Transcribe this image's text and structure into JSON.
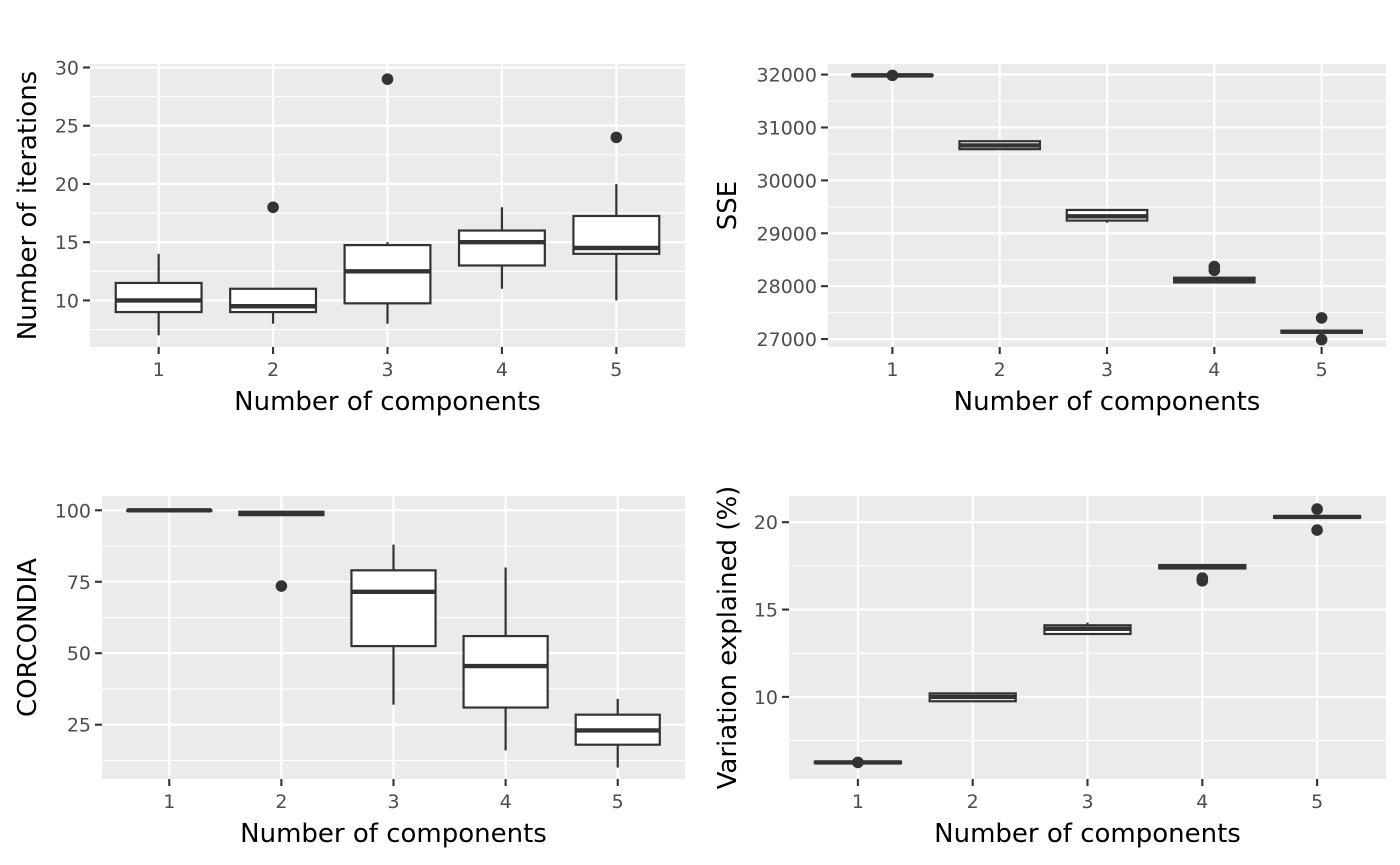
{
  "chart_data": [
    {
      "type": "boxplot",
      "xlabel": "Number of components",
      "ylabel": "Number of iterations",
      "categories": [
        "1",
        "2",
        "3",
        "4",
        "5"
      ],
      "ylim": [
        6,
        30.3
      ],
      "yticks": [
        10,
        15,
        20,
        25,
        30
      ],
      "ytick_labels": [
        "10",
        "15",
        "20",
        "25",
        "30"
      ],
      "yminor": [
        7.5,
        12.5,
        17.5,
        22.5,
        27.5
      ],
      "boxes": [
        {
          "category": "1",
          "whisker_low": 7,
          "q1": 9,
          "median": 10,
          "q3": 11.5,
          "whisker_high": 14,
          "outliers": []
        },
        {
          "category": "2",
          "whisker_low": 8,
          "q1": 9,
          "median": 9.5,
          "q3": 11,
          "whisker_high": 11,
          "outliers": [
            18
          ]
        },
        {
          "category": "3",
          "whisker_low": 8,
          "q1": 9.75,
          "median": 12.5,
          "q3": 14.75,
          "whisker_high": 15,
          "outliers": [
            29
          ]
        },
        {
          "category": "4",
          "whisker_low": 11,
          "q1": 13,
          "median": 15,
          "q3": 16,
          "whisker_high": 18,
          "outliers": []
        },
        {
          "category": "5",
          "whisker_low": 10,
          "q1": 14,
          "median": 14.5,
          "q3": 17.25,
          "whisker_high": 20,
          "outliers": [
            24
          ]
        }
      ]
    },
    {
      "type": "boxplot",
      "xlabel": "Number of components",
      "ylabel": "SSE",
      "categories": [
        "1",
        "2",
        "3",
        "4",
        "5"
      ],
      "ylim": [
        26850,
        32200
      ],
      "yticks": [
        27000,
        28000,
        29000,
        30000,
        31000,
        32000
      ],
      "ytick_labels": [
        "27000",
        "28000",
        "29000",
        "30000",
        "31000",
        "32000"
      ],
      "yminor": [
        27500,
        28500,
        29500,
        30500,
        31500
      ],
      "boxes": [
        {
          "category": "1",
          "whisker_low": 31975,
          "q1": 31980,
          "median": 31985,
          "q3": 31990,
          "whisker_high": 31995,
          "outliers": [
            31985
          ]
        },
        {
          "category": "2",
          "whisker_low": 30580,
          "q1": 30590,
          "median": 30660,
          "q3": 30740,
          "whisker_high": 30750,
          "outliers": []
        },
        {
          "category": "3",
          "whisker_low": 29200,
          "q1": 29240,
          "median": 29320,
          "q3": 29440,
          "whisker_high": 29450,
          "outliers": []
        },
        {
          "category": "4",
          "whisker_low": 28050,
          "q1": 28070,
          "median": 28110,
          "q3": 28160,
          "whisker_high": 28180,
          "outliers": [
            28300,
            28370
          ]
        },
        {
          "category": "5",
          "whisker_low": 27120,
          "q1": 27120,
          "median": 27140,
          "q3": 27160,
          "whisker_high": 27160,
          "outliers": [
            27400,
            26990
          ]
        }
      ]
    },
    {
      "type": "boxplot",
      "xlabel": "Number of components",
      "ylabel": "CORCONDIA",
      "categories": [
        "1",
        "2",
        "3",
        "4",
        "5"
      ],
      "ylim": [
        6,
        105
      ],
      "yticks": [
        25,
        50,
        75,
        100
      ],
      "ytick_labels": [
        "25",
        "50",
        "75",
        "100"
      ],
      "yminor": [
        12.5,
        37.5,
        62.5,
        87.5
      ],
      "boxes": [
        {
          "category": "1",
          "whisker_low": 99.8,
          "q1": 99.8,
          "median": 100,
          "q3": 100,
          "whisker_high": 100,
          "outliers": []
        },
        {
          "category": "2",
          "whisker_low": 98,
          "q1": 98.3,
          "median": 99,
          "q3": 99.5,
          "whisker_high": 99.8,
          "outliers": [
            73.5
          ]
        },
        {
          "category": "3",
          "whisker_low": 32,
          "q1": 52.5,
          "median": 71.5,
          "q3": 79,
          "whisker_high": 88,
          "outliers": []
        },
        {
          "category": "4",
          "whisker_low": 16,
          "q1": 31,
          "median": 45.5,
          "q3": 56,
          "whisker_high": 80,
          "outliers": []
        },
        {
          "category": "5",
          "whisker_low": 10,
          "q1": 18,
          "median": 23,
          "q3": 28.5,
          "whisker_high": 34,
          "outliers": []
        }
      ]
    },
    {
      "type": "boxplot",
      "xlabel": "Number of components",
      "ylabel": "Variation explained (%)",
      "categories": [
        "1",
        "2",
        "3",
        "4",
        "5"
      ],
      "ylim": [
        5.3,
        21.5
      ],
      "yticks": [
        10,
        15,
        20
      ],
      "ytick_labels": [
        "10",
        "15",
        "20"
      ],
      "yminor": [
        7.5,
        12.5,
        17.5
      ],
      "boxes": [
        {
          "category": "1",
          "whisker_low": 6.2,
          "q1": 6.2,
          "median": 6.25,
          "q3": 6.3,
          "whisker_high": 6.3,
          "outliers": [
            6.25
          ]
        },
        {
          "category": "2",
          "whisker_low": 9.75,
          "q1": 9.75,
          "median": 10,
          "q3": 10.2,
          "whisker_high": 10.2,
          "outliers": []
        },
        {
          "category": "3",
          "whisker_low": 13.6,
          "q1": 13.6,
          "median": 13.9,
          "q3": 14.1,
          "whisker_high": 14.25,
          "outliers": []
        },
        {
          "category": "4",
          "whisker_low": 17.3,
          "q1": 17.35,
          "median": 17.45,
          "q3": 17.55,
          "whisker_high": 17.6,
          "outliers": [
            16.65,
            16.8
          ]
        },
        {
          "category": "5",
          "whisker_low": 20.25,
          "q1": 20.25,
          "median": 20.3,
          "q3": 20.35,
          "whisker_high": 20.35,
          "outliers": [
            20.75,
            19.55
          ]
        }
      ]
    }
  ]
}
